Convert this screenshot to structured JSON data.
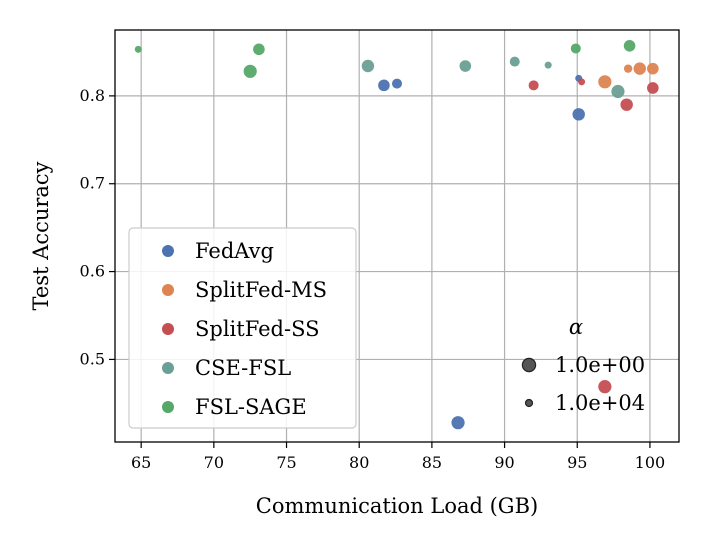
{
  "chart_data": {
    "type": "scatter",
    "xlabel": "Communication Load (GB)",
    "ylabel": "Test Accuracy",
    "xlim": [
      63.2,
      102
    ],
    "ylim": [
      0.406,
      0.875
    ],
    "xticks": [
      65,
      70,
      75,
      80,
      85,
      90,
      95,
      100
    ],
    "yticks": [
      0.5,
      0.6,
      0.7,
      0.8
    ],
    "grid": true,
    "legend_placement": "lower-left",
    "size_legend_title": "α",
    "size_legend": [
      {
        "label": "1.0e+00",
        "alpha": 1
      },
      {
        "label": "1.0e+04",
        "alpha": 10000
      }
    ],
    "series": [
      {
        "name": "FedAvg",
        "color": "#4c72b0",
        "points": [
          {
            "x": 81.7,
            "y": 0.812,
            "alpha": 10
          },
          {
            "x": 82.6,
            "y": 0.814,
            "alpha": 100
          },
          {
            "x": 95.1,
            "y": 0.82,
            "alpha": 10000
          },
          {
            "x": 95.1,
            "y": 0.779,
            "alpha": 3
          },
          {
            "x": 86.8,
            "y": 0.428,
            "alpha": 1
          }
        ]
      },
      {
        "name": "SplitFed-MS",
        "color": "#dd8452",
        "points": [
          {
            "x": 96.9,
            "y": 0.816,
            "alpha": 1
          },
          {
            "x": 98.5,
            "y": 0.831,
            "alpha": 1000
          },
          {
            "x": 99.3,
            "y": 0.831,
            "alpha": 3
          },
          {
            "x": 100.2,
            "y": 0.831,
            "alpha": 10
          }
        ]
      },
      {
        "name": "SplitFed-SS",
        "color": "#c44e52",
        "points": [
          {
            "x": 92.0,
            "y": 0.812,
            "alpha": 100
          },
          {
            "x": 95.3,
            "y": 0.816,
            "alpha": 10000
          },
          {
            "x": 98.4,
            "y": 0.79,
            "alpha": 3
          },
          {
            "x": 100.2,
            "y": 0.809,
            "alpha": 10
          },
          {
            "x": 96.9,
            "y": 0.469,
            "alpha": 1
          }
        ]
      },
      {
        "name": "CSE-FSL",
        "color": "#6a9f95",
        "points": [
          {
            "x": 80.6,
            "y": 0.834,
            "alpha": 3
          },
          {
            "x": 87.3,
            "y": 0.834,
            "alpha": 10
          },
          {
            "x": 90.7,
            "y": 0.839,
            "alpha": 100
          },
          {
            "x": 93.0,
            "y": 0.835,
            "alpha": 10000
          },
          {
            "x": 97.8,
            "y": 0.805,
            "alpha": 1
          }
        ]
      },
      {
        "name": "FSL-SAGE",
        "color": "#55a868",
        "points": [
          {
            "x": 64.8,
            "y": 0.853,
            "alpha": 10000
          },
          {
            "x": 73.1,
            "y": 0.853,
            "alpha": 10
          },
          {
            "x": 72.5,
            "y": 0.828,
            "alpha": 1
          },
          {
            "x": 94.9,
            "y": 0.854,
            "alpha": 100
          },
          {
            "x": 98.6,
            "y": 0.857,
            "alpha": 10
          }
        ]
      }
    ]
  }
}
